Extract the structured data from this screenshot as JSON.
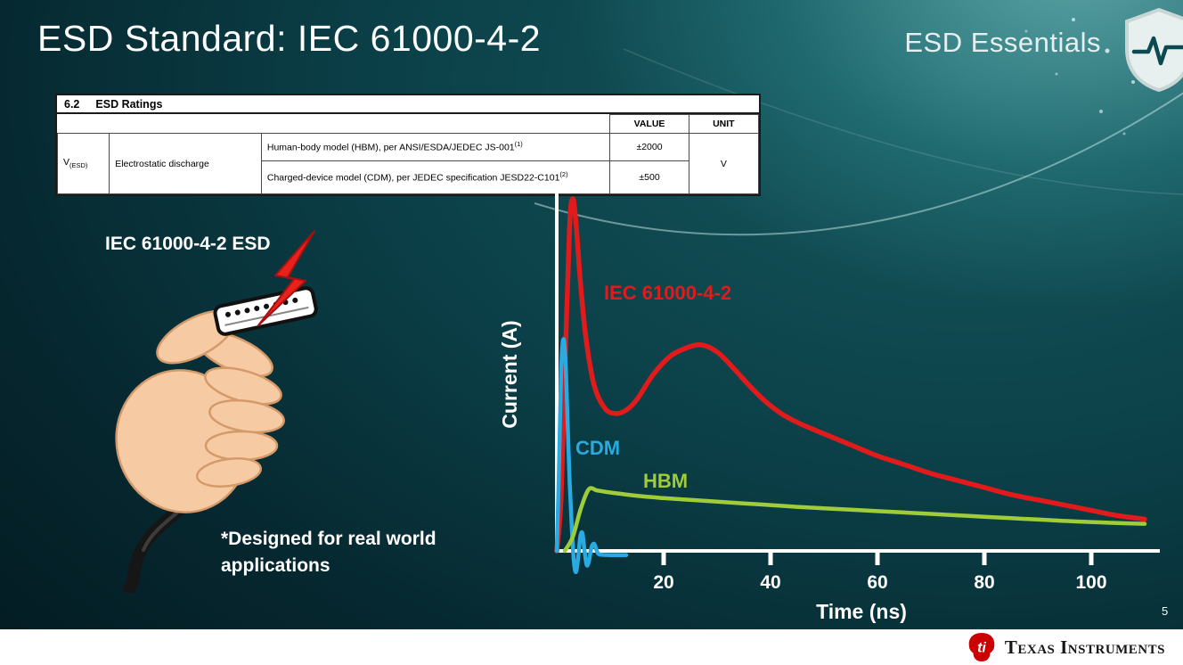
{
  "slide": {
    "title": "ESD Standard: IEC 61000-4-2",
    "brand": "ESD Essentials",
    "page_number": "5"
  },
  "ratings_table": {
    "section_num": "6.2",
    "section_name": "ESD Ratings",
    "col_value": "VALUE",
    "col_unit": "UNIT",
    "param_symbol": "V",
    "param_symbol_sub": "(ESD)",
    "param_name": "Electrostatic discharge",
    "rows": [
      {
        "desc": "Human-body model (HBM), per ANSI/ESDA/JEDEC JS-001",
        "sup": "(1)",
        "value": "±2000"
      },
      {
        "desc": "Charged-device model (CDM), per JEDEC specification JESD22-C101",
        "sup": "(2)",
        "value": "±500"
      }
    ],
    "unit": "V"
  },
  "left_panel": {
    "connector_label": "IEC 61000-4-2 ESD",
    "note_line1": "*Designed for real world",
    "note_line2": "applications"
  },
  "chart_data": {
    "type": "line",
    "title": "",
    "xlabel": "Time (ns)",
    "ylabel": "Current (A)",
    "xticks": [
      20,
      40,
      60,
      80,
      100
    ],
    "x_range": [
      0,
      110
    ],
    "y_range_relative": [
      0,
      1
    ],
    "grid": false,
    "legend_position": "inline-labels",
    "series": [
      {
        "name": "IEC 61000-4-2",
        "color": "#e11b1b",
        "points": [
          [
            0,
            0
          ],
          [
            0.8,
            0.15
          ],
          [
            1.6,
            0.55
          ],
          [
            2.4,
            0.92
          ],
          [
            3,
            1.0
          ],
          [
            3.6,
            0.93
          ],
          [
            4.5,
            0.75
          ],
          [
            5.5,
            0.6
          ],
          [
            7,
            0.47
          ],
          [
            9,
            0.405
          ],
          [
            11,
            0.39
          ],
          [
            13,
            0.4
          ],
          [
            15,
            0.43
          ],
          [
            18,
            0.5
          ],
          [
            21,
            0.55
          ],
          [
            24,
            0.575
          ],
          [
            27,
            0.585
          ],
          [
            30,
            0.565
          ],
          [
            33,
            0.52
          ],
          [
            36,
            0.47
          ],
          [
            39,
            0.425
          ],
          [
            42,
            0.39
          ],
          [
            45,
            0.365
          ],
          [
            48,
            0.345
          ],
          [
            52,
            0.32
          ],
          [
            56,
            0.295
          ],
          [
            60,
            0.27
          ],
          [
            65,
            0.245
          ],
          [
            70,
            0.22
          ],
          [
            75,
            0.2
          ],
          [
            80,
            0.18
          ],
          [
            85,
            0.16
          ],
          [
            90,
            0.145
          ],
          [
            95,
            0.13
          ],
          [
            100,
            0.115
          ],
          [
            105,
            0.1
          ],
          [
            110,
            0.09
          ]
        ]
      },
      {
        "name": "CDM",
        "color": "#29aae1",
        "points": [
          [
            0,
            0
          ],
          [
            0.4,
            0.22
          ],
          [
            0.8,
            0.5
          ],
          [
            1.2,
            0.6
          ],
          [
            1.6,
            0.55
          ],
          [
            2,
            0.38
          ],
          [
            2.4,
            0.2
          ],
          [
            2.8,
            0.07
          ],
          [
            3.2,
            -0.03
          ],
          [
            3.6,
            -0.06
          ],
          [
            4,
            -0.02
          ],
          [
            4.4,
            0.04
          ],
          [
            4.8,
            0.05
          ],
          [
            5.2,
            0
          ],
          [
            5.6,
            -0.04
          ],
          [
            6,
            -0.03
          ],
          [
            6.5,
            0.01
          ],
          [
            7,
            0.02
          ],
          [
            7.5,
            0
          ],
          [
            8,
            -0.01
          ],
          [
            10,
            -0.012
          ],
          [
            13,
            -0.012
          ]
        ]
      },
      {
        "name": "HBM",
        "color": "#a0cc3a",
        "points": [
          [
            1.5,
            0
          ],
          [
            3,
            0.04
          ],
          [
            4.5,
            0.12
          ],
          [
            6,
            0.175
          ],
          [
            7.5,
            0.172
          ],
          [
            9,
            0.168
          ],
          [
            12,
            0.162
          ],
          [
            16,
            0.155
          ],
          [
            20,
            0.15
          ],
          [
            25,
            0.145
          ],
          [
            30,
            0.14
          ],
          [
            35,
            0.135
          ],
          [
            40,
            0.13
          ],
          [
            45,
            0.125
          ],
          [
            50,
            0.121
          ],
          [
            55,
            0.117
          ],
          [
            60,
            0.113
          ],
          [
            65,
            0.109
          ],
          [
            70,
            0.105
          ],
          [
            75,
            0.101
          ],
          [
            80,
            0.097
          ],
          [
            85,
            0.093
          ],
          [
            90,
            0.089
          ],
          [
            95,
            0.085
          ],
          [
            100,
            0.082
          ],
          [
            105,
            0.079
          ],
          [
            110,
            0.077
          ]
        ]
      }
    ]
  },
  "footer": {
    "logo_text": "Texas Instruments"
  },
  "colors": {
    "bolt_red": "#e8211d",
    "ti_red": "#cc0000",
    "background_teal": "#0b3f47",
    "axis_white": "#ffffff"
  }
}
